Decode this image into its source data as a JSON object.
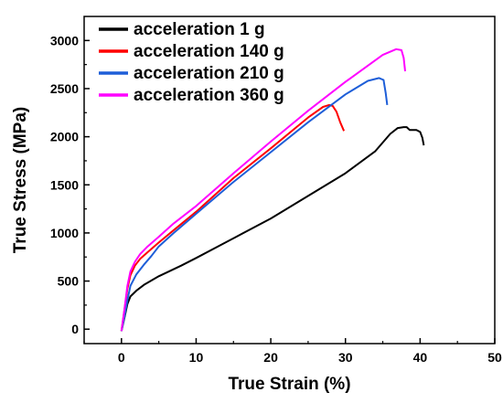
{
  "chart_data": {
    "type": "line",
    "xlabel": "True Strain (%)",
    "ylabel": "True Stress (MPa)",
    "xlim": [
      -5,
      50
    ],
    "ylim": [
      -150,
      3250
    ],
    "xticks": [
      0,
      10,
      20,
      30,
      40,
      50
    ],
    "yticks": [
      0,
      500,
      1000,
      1500,
      2000,
      2500,
      3000
    ],
    "xtick_labels": [
      "0",
      "10",
      "20",
      "30",
      "40",
      "50"
    ],
    "ytick_labels": [
      "0",
      "500",
      "1000",
      "1500",
      "2000",
      "2500",
      "3000"
    ],
    "legend_position": "top-left",
    "grid": false,
    "series": [
      {
        "name": "acceleration 1 g",
        "color": "#000000",
        "x": [
          0,
          0.4,
          0.8,
          1.2,
          2,
          3,
          5,
          8,
          10,
          15,
          20,
          25,
          30,
          34,
          36,
          37,
          37.8,
          38.2,
          38.6,
          39.5,
          40,
          40.3,
          40.5
        ],
        "y": [
          -20,
          120,
          260,
          340,
          400,
          460,
          550,
          660,
          740,
          945,
          1150,
          1385,
          1620,
          1850,
          2030,
          2090,
          2100,
          2100,
          2070,
          2070,
          2050,
          1990,
          1910
        ]
      },
      {
        "name": "acceleration 140 g",
        "color": "#ff0000",
        "x": [
          0,
          0.4,
          0.8,
          1.2,
          1.8,
          2.5,
          3.5,
          5,
          7,
          10,
          15,
          20,
          25,
          27,
          27.8,
          28.3,
          28.8,
          29.3,
          29.8
        ],
        "y": [
          -20,
          200,
          420,
          560,
          660,
          730,
          800,
          900,
          1030,
          1220,
          1570,
          1880,
          2200,
          2310,
          2330,
          2320,
          2260,
          2150,
          2060
        ]
      },
      {
        "name": "acceleration 210 g",
        "color": "#1e5ed8",
        "x": [
          0,
          0.4,
          0.8,
          1.2,
          2,
          3,
          4,
          5,
          7,
          10,
          15,
          20,
          25,
          30,
          33,
          34.5,
          35.1,
          35.4,
          35.6
        ],
        "y": [
          -20,
          130,
          300,
          450,
          570,
          670,
          760,
          860,
          1000,
          1200,
          1530,
          1840,
          2150,
          2440,
          2580,
          2610,
          2590,
          2450,
          2330
        ]
      },
      {
        "name": "acceleration 360 g",
        "color": "#ff00ff",
        "x": [
          0,
          0.4,
          0.8,
          1.2,
          1.8,
          2.5,
          3.5,
          5,
          7,
          10,
          15,
          20,
          25,
          30,
          35,
          36.8,
          37.5,
          37.8,
          38
        ],
        "y": [
          -20,
          210,
          450,
          600,
          700,
          780,
          860,
          960,
          1100,
          1280,
          1620,
          1950,
          2270,
          2570,
          2850,
          2910,
          2900,
          2820,
          2680
        ]
      }
    ]
  }
}
